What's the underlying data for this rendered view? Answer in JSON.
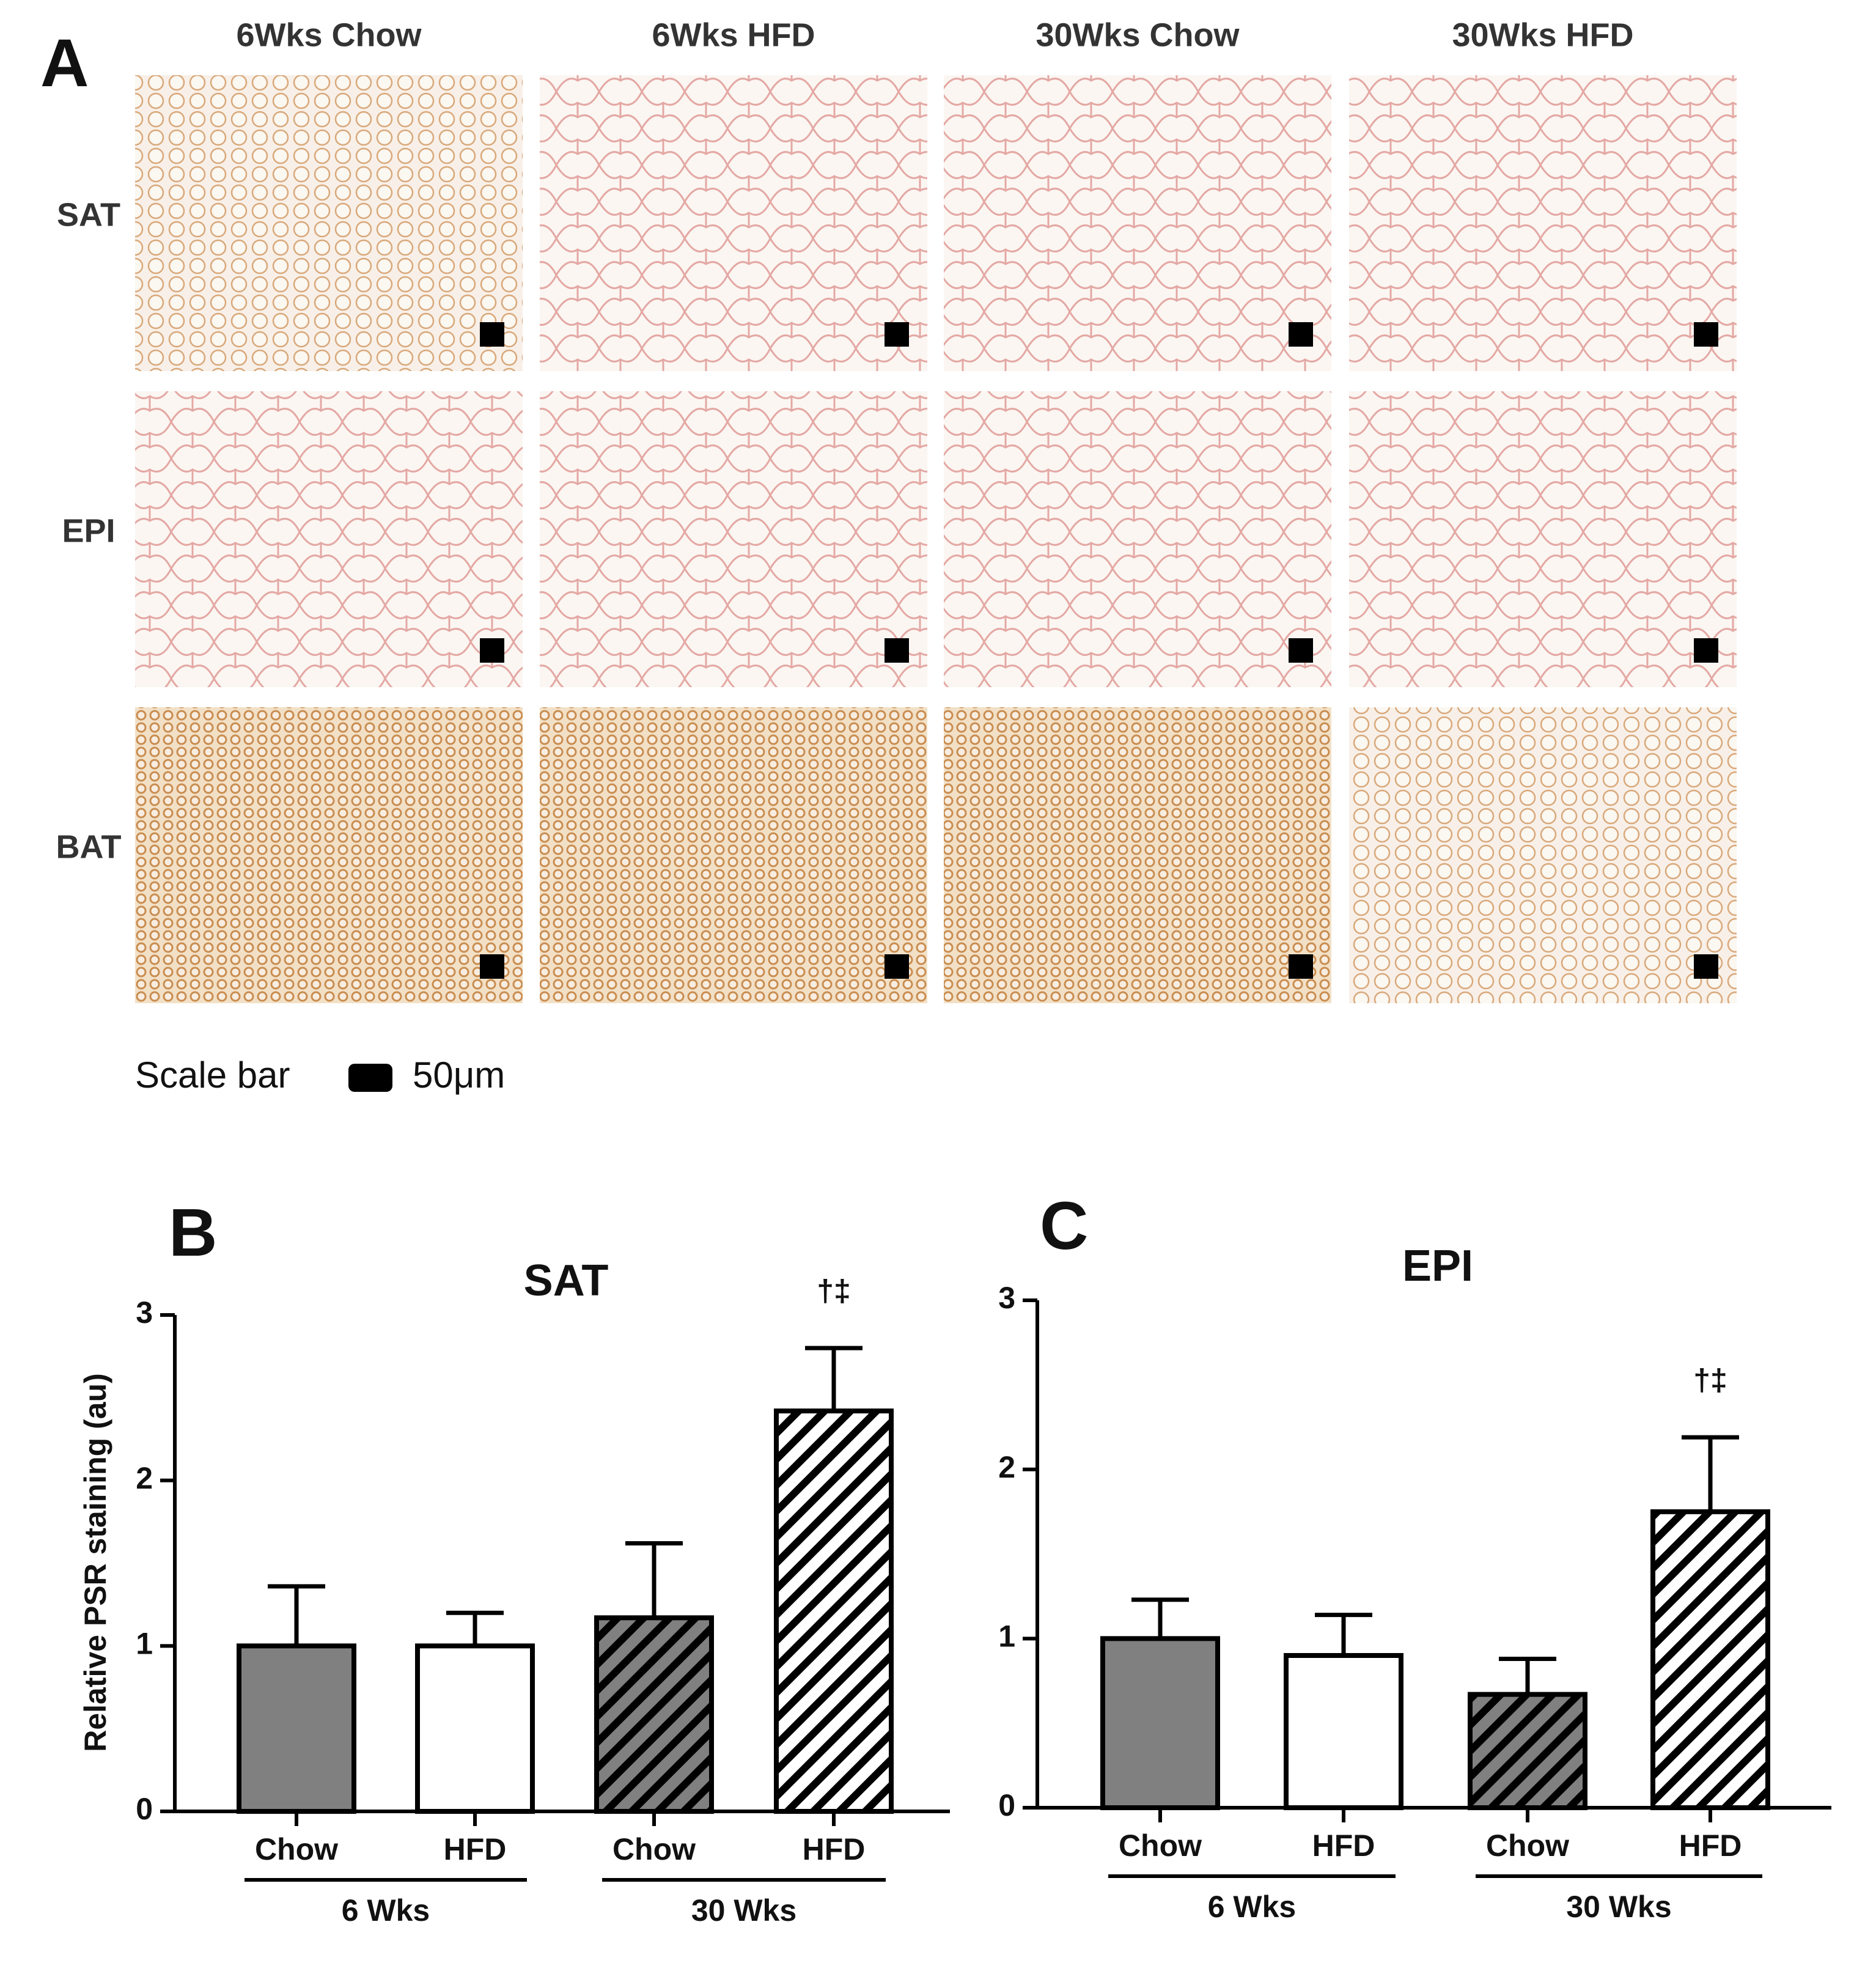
{
  "panel_a": {
    "label": "A",
    "columns": [
      "6Wks Chow",
      "6Wks HFD",
      "30Wks Chow",
      "30Wks HFD"
    ],
    "rows": [
      "SAT",
      "EPI",
      "BAT"
    ],
    "scale_bar": {
      "label": "Scale bar",
      "size": "50μm"
    }
  },
  "chart_data": [
    {
      "type": "bar",
      "panel": "B",
      "title": "SAT",
      "y_label": "Relative PSR staining (au)",
      "categories": [
        "Chow",
        "HFD",
        "Chow",
        "HFD"
      ],
      "group_labels": [
        "6 Wks",
        "30 Wks"
      ],
      "values": [
        1.0,
        1.0,
        1.17,
        2.42
      ],
      "errors": [
        0.36,
        0.2,
        0.45,
        0.38
      ],
      "value_annotations": [
        null,
        null,
        null,
        "†‡"
      ],
      "colors": [
        "#808080",
        "#ffffff",
        "#808080",
        "#ffffff"
      ],
      "hatch": [
        false,
        false,
        true,
        true
      ],
      "ylim": [
        0,
        3
      ],
      "yticks": [
        0,
        1,
        2,
        3
      ]
    },
    {
      "type": "bar",
      "panel": "C",
      "title": "EPI",
      "categories": [
        "Chow",
        "HFD",
        "Chow",
        "HFD"
      ],
      "group_labels": [
        "6 Wks",
        "30 Wks"
      ],
      "values": [
        1.0,
        0.9,
        0.67,
        1.75
      ],
      "errors": [
        0.23,
        0.24,
        0.21,
        0.44
      ],
      "value_annotations": [
        null,
        null,
        null,
        "†‡"
      ],
      "colors": [
        "#808080",
        "#ffffff",
        "#808080",
        "#ffffff"
      ],
      "hatch": [
        false,
        false,
        true,
        true
      ],
      "ylim": [
        0,
        3
      ],
      "yticks": [
        0,
        1,
        2,
        3
      ]
    }
  ]
}
